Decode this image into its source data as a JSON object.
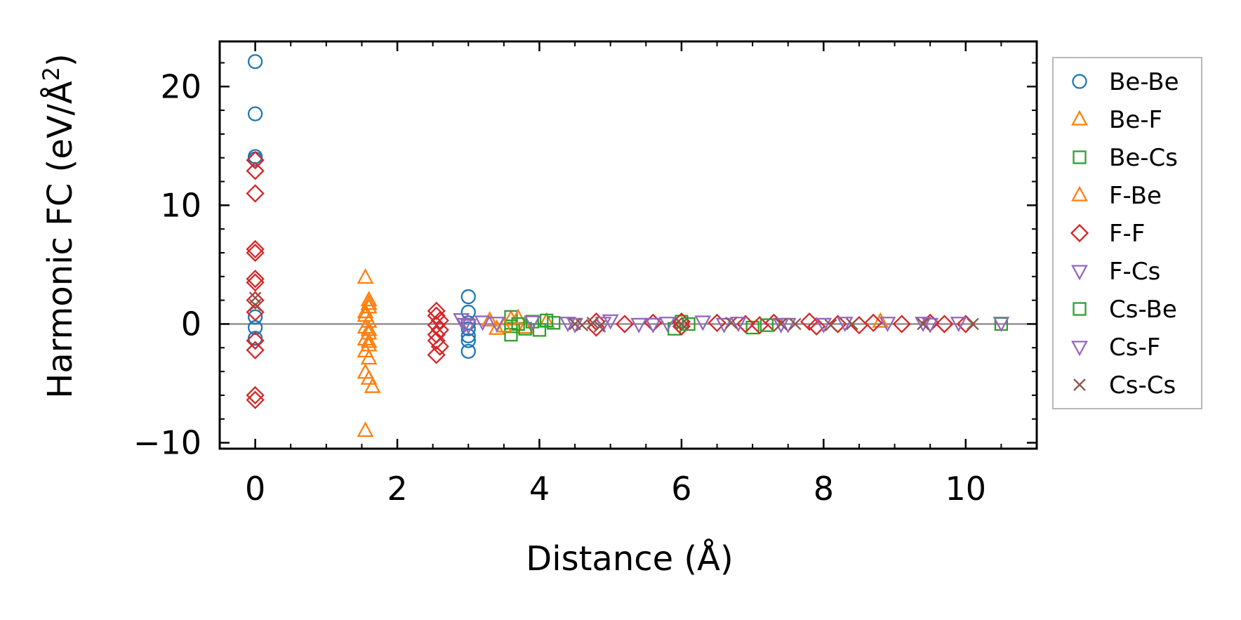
{
  "chart_data": {
    "type": "scatter",
    "title": "",
    "xlabel": "Distance (Å)",
    "ylabel_text": "Harmonic FC (eV/Å",
    "ylabel_sup": "2",
    "ylabel_close": ")",
    "xlim": [
      -0.5,
      11.0
    ],
    "ylim": [
      -10.5,
      23.8
    ],
    "xticks": [
      0,
      2,
      4,
      6,
      8,
      10
    ],
    "xtick_labels": [
      "0",
      "2",
      "4",
      "6",
      "8",
      "10"
    ],
    "yticks": [
      -10,
      0,
      10,
      20
    ],
    "ytick_labels": [
      "−10",
      "0",
      "10",
      "20"
    ],
    "grid": false,
    "zero_line": true,
    "legend_position": "outside-right",
    "series": [
      {
        "name": "Be-Be",
        "marker": "circle",
        "color": "#1f77b4",
        "points": [
          [
            0,
            22.1
          ],
          [
            0,
            17.7
          ],
          [
            0,
            14.1
          ],
          [
            0,
            13.9
          ],
          [
            0,
            0.6
          ],
          [
            0,
            -0.3
          ],
          [
            0,
            -1.2
          ],
          [
            3.0,
            2.3
          ],
          [
            3.0,
            1.0
          ],
          [
            3.0,
            0.1
          ],
          [
            3.0,
            -0.4
          ],
          [
            3.0,
            -1.0
          ],
          [
            3.0,
            -1.4
          ],
          [
            3.0,
            -2.3
          ]
        ]
      },
      {
        "name": "Be-F",
        "marker": "triangle-up",
        "color": "#ff7f0e",
        "points": [
          [
            1.55,
            3.9
          ],
          [
            1.6,
            2.0
          ],
          [
            1.6,
            1.4
          ],
          [
            1.55,
            0.7
          ],
          [
            1.6,
            0.2
          ],
          [
            1.55,
            -0.3
          ],
          [
            1.6,
            -0.8
          ],
          [
            1.55,
            -1.3
          ],
          [
            1.6,
            -1.8
          ],
          [
            1.55,
            -2.3
          ],
          [
            1.6,
            -2.9
          ],
          [
            1.55,
            -4.1
          ],
          [
            1.6,
            -4.6
          ],
          [
            1.65,
            -5.3
          ],
          [
            1.55,
            -9.0
          ],
          [
            3.3,
            0.3
          ],
          [
            3.4,
            -0.4
          ],
          [
            3.6,
            0.4
          ],
          [
            3.8,
            -0.3
          ],
          [
            4.1,
            0.2
          ]
        ]
      },
      {
        "name": "Be-Cs",
        "marker": "square",
        "color": "#2ca02c",
        "points": [
          [
            3.6,
            0.6
          ],
          [
            3.6,
            -0.2
          ],
          [
            3.6,
            -0.9
          ],
          [
            3.8,
            -0.4
          ],
          [
            3.9,
            0.2
          ],
          [
            4.0,
            -0.5
          ],
          [
            4.1,
            0.3
          ],
          [
            5.9,
            -0.4
          ],
          [
            6.0,
            0.2
          ],
          [
            7.0,
            -0.3
          ],
          [
            10.5,
            0.0
          ]
        ]
      },
      {
        "name": "F-Be",
        "marker": "triangle-up",
        "color": "#ff7f0e",
        "points": [
          [
            1.6,
            1.7
          ],
          [
            1.55,
            1.0
          ],
          [
            1.6,
            -0.5
          ],
          [
            1.6,
            -1.5
          ],
          [
            3.5,
            -0.2
          ],
          [
            3.7,
            0.5
          ],
          [
            8.8,
            0.2
          ]
        ]
      },
      {
        "name": "F-F",
        "marker": "diamond",
        "color": "#d62728",
        "points": [
          [
            0,
            13.8
          ],
          [
            0,
            12.9
          ],
          [
            0,
            11.0
          ],
          [
            0,
            6.3
          ],
          [
            0,
            6.0
          ],
          [
            0,
            3.8
          ],
          [
            0,
            3.5
          ],
          [
            0,
            2.0
          ],
          [
            0,
            1.0
          ],
          [
            0,
            -1.4
          ],
          [
            0,
            -2.2
          ],
          [
            0,
            -6.0
          ],
          [
            0,
            -6.4
          ],
          [
            2.55,
            1.1
          ],
          [
            2.55,
            0.7
          ],
          [
            2.6,
            0.3
          ],
          [
            2.55,
            -0.1
          ],
          [
            2.6,
            -0.5
          ],
          [
            2.55,
            -0.9
          ],
          [
            2.55,
            -1.4
          ],
          [
            2.6,
            -1.9
          ],
          [
            2.55,
            -2.6
          ],
          [
            4.8,
            0.2
          ],
          [
            4.8,
            -0.3
          ],
          [
            5.2,
            0.0
          ],
          [
            5.6,
            0.1
          ],
          [
            6.0,
            0.2
          ],
          [
            6.0,
            -0.2
          ],
          [
            6.5,
            0.1
          ],
          [
            6.9,
            0.0
          ],
          [
            7.1,
            -0.1
          ],
          [
            7.3,
            0.1
          ],
          [
            7.8,
            0.2
          ],
          [
            7.9,
            -0.2
          ],
          [
            8.2,
            0.0
          ],
          [
            8.5,
            -0.1
          ],
          [
            8.7,
            0.1
          ],
          [
            9.1,
            0.0
          ],
          [
            9.5,
            0.1
          ],
          [
            9.7,
            0.0
          ],
          [
            10.0,
            0.0
          ]
        ]
      },
      {
        "name": "F-Cs",
        "marker": "triangle-down",
        "color": "#9467bd",
        "points": [
          [
            2.9,
            0.4
          ],
          [
            3.0,
            -0.1
          ],
          [
            3.4,
            0.1
          ],
          [
            3.9,
            0.2
          ],
          [
            4.5,
            0.0
          ],
          [
            5.0,
            0.3
          ],
          [
            5.6,
            0.0
          ],
          [
            6.3,
            0.2
          ],
          [
            6.8,
            0.1
          ],
          [
            7.5,
            0.0
          ],
          [
            8.0,
            0.0
          ],
          [
            9.4,
            0.1
          ],
          [
            9.9,
            0.1
          ],
          [
            10.5,
            0.1
          ]
        ]
      },
      {
        "name": "Cs-Be",
        "marker": "square",
        "color": "#2ca02c",
        "points": [
          [
            3.7,
            0.0
          ],
          [
            4.2,
            0.1
          ],
          [
            6.1,
            0.0
          ],
          [
            7.2,
            -0.1
          ]
        ]
      },
      {
        "name": "Cs-F",
        "marker": "triangle-down",
        "color": "#9467bd",
        "points": [
          [
            2.95,
            0.0
          ],
          [
            3.2,
            0.2
          ],
          [
            4.4,
            0.1
          ],
          [
            4.9,
            0.1
          ],
          [
            5.4,
            0.0
          ],
          [
            5.8,
            0.1
          ],
          [
            6.6,
            0.0
          ],
          [
            7.4,
            0.0
          ],
          [
            8.3,
            0.1
          ],
          [
            8.9,
            0.1
          ],
          [
            9.5,
            0.0
          ]
        ]
      },
      {
        "name": "Cs-Cs",
        "marker": "x",
        "color": "#8c564b",
        "points": [
          [
            0,
            2.2
          ],
          [
            0,
            1.6
          ],
          [
            4.5,
            0.0
          ],
          [
            4.6,
            -0.1
          ],
          [
            4.75,
            0.1
          ],
          [
            4.85,
            -0.2
          ],
          [
            6.0,
            0.0
          ],
          [
            6.7,
            0.1
          ],
          [
            7.4,
            0.0
          ],
          [
            7.6,
            0.0
          ],
          [
            8.1,
            -0.1
          ],
          [
            8.4,
            0.0
          ],
          [
            9.4,
            0.0
          ],
          [
            10.1,
            0.0
          ]
        ]
      }
    ]
  }
}
